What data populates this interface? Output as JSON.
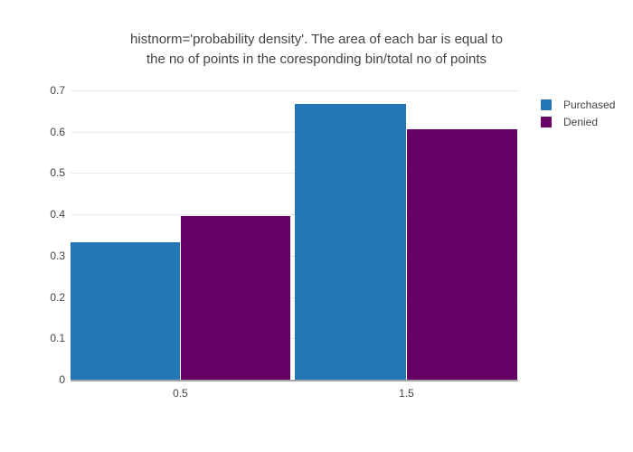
{
  "chart_data": {
    "type": "bar",
    "title": "histnorm='probability density'. The area of each bar is equal to the no of points in the coresponding bin/total no of points",
    "title_lines": [
      "histnorm='probability density'. The area of each bar is equal to",
      "the no of points in the coresponding bin/total no of points"
    ],
    "categories": [
      "0.5",
      "1.5"
    ],
    "series": [
      {
        "name": "Purchased",
        "color": "#2277b4",
        "values": [
          0.333,
          0.667
        ]
      },
      {
        "name": "Denied",
        "color": "#670067",
        "values": [
          0.395,
          0.605
        ]
      }
    ],
    "xlabel": "",
    "ylabel": "",
    "xlim": [
      0,
      2
    ],
    "ylim": [
      0,
      0.7
    ],
    "yticks": [
      0,
      0.1,
      0.2,
      0.3,
      0.4,
      0.5,
      0.6,
      0.7
    ],
    "ytick_labels": [
      "0",
      "0.1",
      "0.2",
      "0.3",
      "0.4",
      "0.5",
      "0.6",
      "0.7"
    ],
    "grid": true,
    "legend_position": "top-right",
    "bin_width": 1,
    "barmode": "group"
  },
  "colors": {
    "text": "#444444",
    "grid": "#e9e9e9",
    "axis_line": "#a3a3a3",
    "background": "#ffffff"
  }
}
